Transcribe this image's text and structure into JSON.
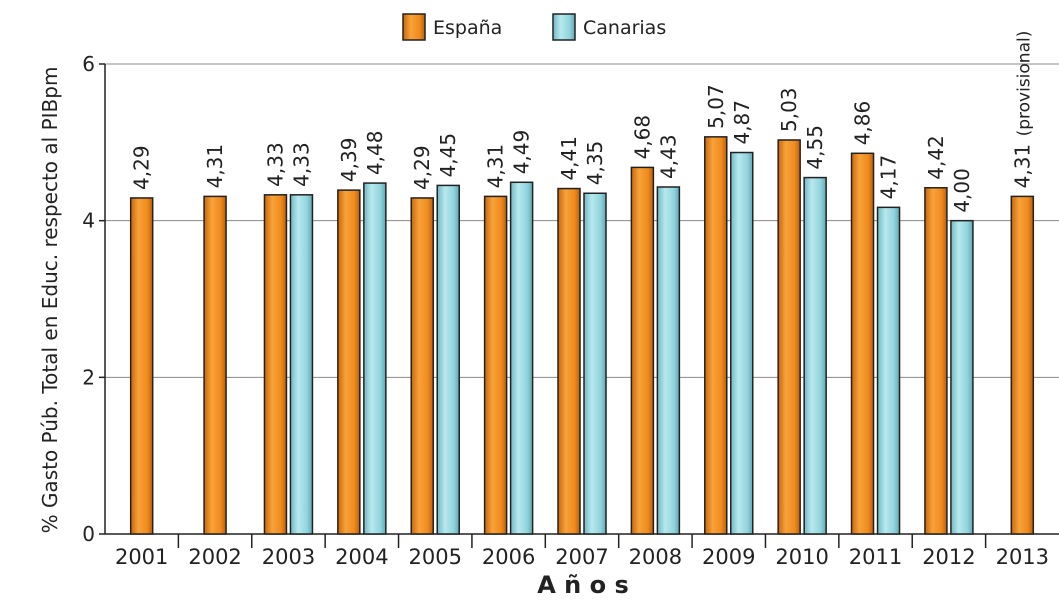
{
  "chart_data": {
    "type": "bar",
    "xlabel": "A ñ o s",
    "ylabel": "% Gasto Púb. Total en Educ. respecto al PIBpm",
    "ylim": [
      0,
      6
    ],
    "yticks": [
      "0",
      "2",
      "4",
      "6"
    ],
    "grid": true,
    "legend_position": "top-center",
    "categories": [
      "2001",
      "2002",
      "2003",
      "2004",
      "2005",
      "2006",
      "2007",
      "2008",
      "2009",
      "2010",
      "2011",
      "2012",
      "2013"
    ],
    "series": [
      {
        "name": "España",
        "color": "#f28c1c",
        "values": [
          4.29,
          4.31,
          4.33,
          4.39,
          4.29,
          4.31,
          4.41,
          4.68,
          5.07,
          5.03,
          4.86,
          4.42,
          4.31
        ],
        "labels": [
          "4,29",
          "4,31",
          "4,33",
          "4,39",
          "4,29",
          "4,31",
          "4,41",
          "4,68",
          "5,07",
          "5,03",
          "4,86",
          "4,42",
          "4,31"
        ]
      },
      {
        "name": "Canarias",
        "color": "#8fd3dc",
        "values": [
          null,
          null,
          4.33,
          4.48,
          4.45,
          4.49,
          4.35,
          4.43,
          4.87,
          4.55,
          4.17,
          4.0,
          null
        ],
        "labels": [
          null,
          null,
          "4,33",
          "4,48",
          "4,45",
          "4,49",
          "4,35",
          "4,43",
          "4,87",
          "4,55",
          "4,17",
          "4,00",
          null
        ]
      }
    ],
    "annotations": [
      {
        "category": "2013",
        "text": "(provisional)"
      }
    ]
  }
}
